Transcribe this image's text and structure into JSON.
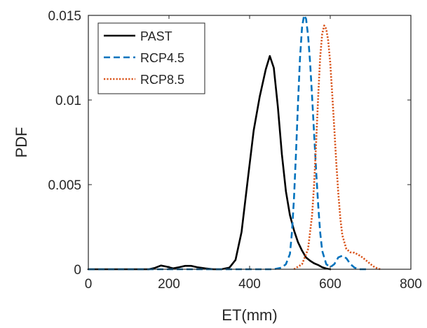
{
  "chart_data": {
    "type": "line",
    "title": "",
    "xlabel": "ET(mm)",
    "ylabel": "PDF",
    "xlim": [
      0,
      800
    ],
    "ylim": [
      0,
      0.015
    ],
    "xticks": [
      0,
      200,
      400,
      600,
      800
    ],
    "xtick_labels": [
      "0",
      "200",
      "400",
      "600",
      "800"
    ],
    "yticks": [
      0,
      0.005,
      0.01,
      0.015
    ],
    "ytick_labels": [
      "0",
      "0.005",
      "0.01",
      "0.015"
    ],
    "grid": false,
    "legend_position": "top-left",
    "series": [
      {
        "name": "PAST",
        "color": "#000000",
        "dash": "solid",
        "x": [
          0,
          100,
          150,
          165,
          180,
          195,
          210,
          225,
          240,
          255,
          270,
          290,
          310,
          330,
          350,
          365,
          380,
          395,
          410,
          425,
          440,
          450,
          460,
          470,
          480,
          490,
          500,
          510,
          520,
          530,
          540,
          550,
          560,
          570,
          580,
          590,
          600
        ],
        "y": [
          0,
          0,
          0,
          8e-05,
          0.00022,
          0.00015,
          5e-05,
          0.00012,
          0.0002,
          0.0002,
          0.00012,
          5e-05,
          0.0,
          0.0,
          0.0001,
          0.00055,
          0.0022,
          0.0052,
          0.0082,
          0.0102,
          0.0118,
          0.0126,
          0.0119,
          0.0096,
          0.0068,
          0.0046,
          0.0032,
          0.0023,
          0.0016,
          0.0011,
          0.0007,
          0.0005,
          0.00035,
          0.00025,
          0.00012,
          4e-05,
          0
        ]
      },
      {
        "name": "RCP4.5",
        "color": "#0072BD",
        "dash": "dashed",
        "x": [
          0,
          100,
          200,
          300,
          380,
          460,
          480,
          490,
          500,
          505,
          510,
          515,
          520,
          525,
          530,
          535,
          540,
          545,
          550,
          555,
          560,
          565,
          570,
          575,
          580,
          590,
          600,
          610,
          620,
          630,
          640,
          650,
          660,
          670,
          680,
          690
        ],
        "y": [
          0,
          0,
          0,
          0,
          0,
          0,
          0.0001,
          0.0003,
          0.0009,
          0.0022,
          0.0042,
          0.0068,
          0.0098,
          0.0125,
          0.0143,
          0.015,
          0.0148,
          0.0138,
          0.0122,
          0.0102,
          0.008,
          0.0058,
          0.0038,
          0.0022,
          0.0011,
          0.0003,
          0.00012,
          0.0003,
          0.0007,
          0.0008,
          0.00065,
          0.0003,
          0.0001,
          0,
          0,
          0
        ]
      },
      {
        "name": "RCP8.5",
        "color": "#D95319",
        "dash": "dotted",
        "x": [
          510,
          530,
          545,
          555,
          560,
          565,
          570,
          575,
          580,
          585,
          590,
          595,
          600,
          605,
          610,
          615,
          620,
          625,
          630,
          640,
          650,
          660,
          670,
          680,
          690,
          700,
          710,
          720,
          725
        ],
        "y": [
          0,
          0.0003,
          0.0012,
          0.0032,
          0.005,
          0.0075,
          0.0102,
          0.0125,
          0.0139,
          0.0144,
          0.0142,
          0.0135,
          0.0122,
          0.0103,
          0.0083,
          0.0063,
          0.0045,
          0.003,
          0.002,
          0.0012,
          0.001,
          0.00098,
          0.00085,
          0.0007,
          0.0005,
          0.0003,
          0.00012,
          3e-05,
          0
        ]
      }
    ]
  }
}
